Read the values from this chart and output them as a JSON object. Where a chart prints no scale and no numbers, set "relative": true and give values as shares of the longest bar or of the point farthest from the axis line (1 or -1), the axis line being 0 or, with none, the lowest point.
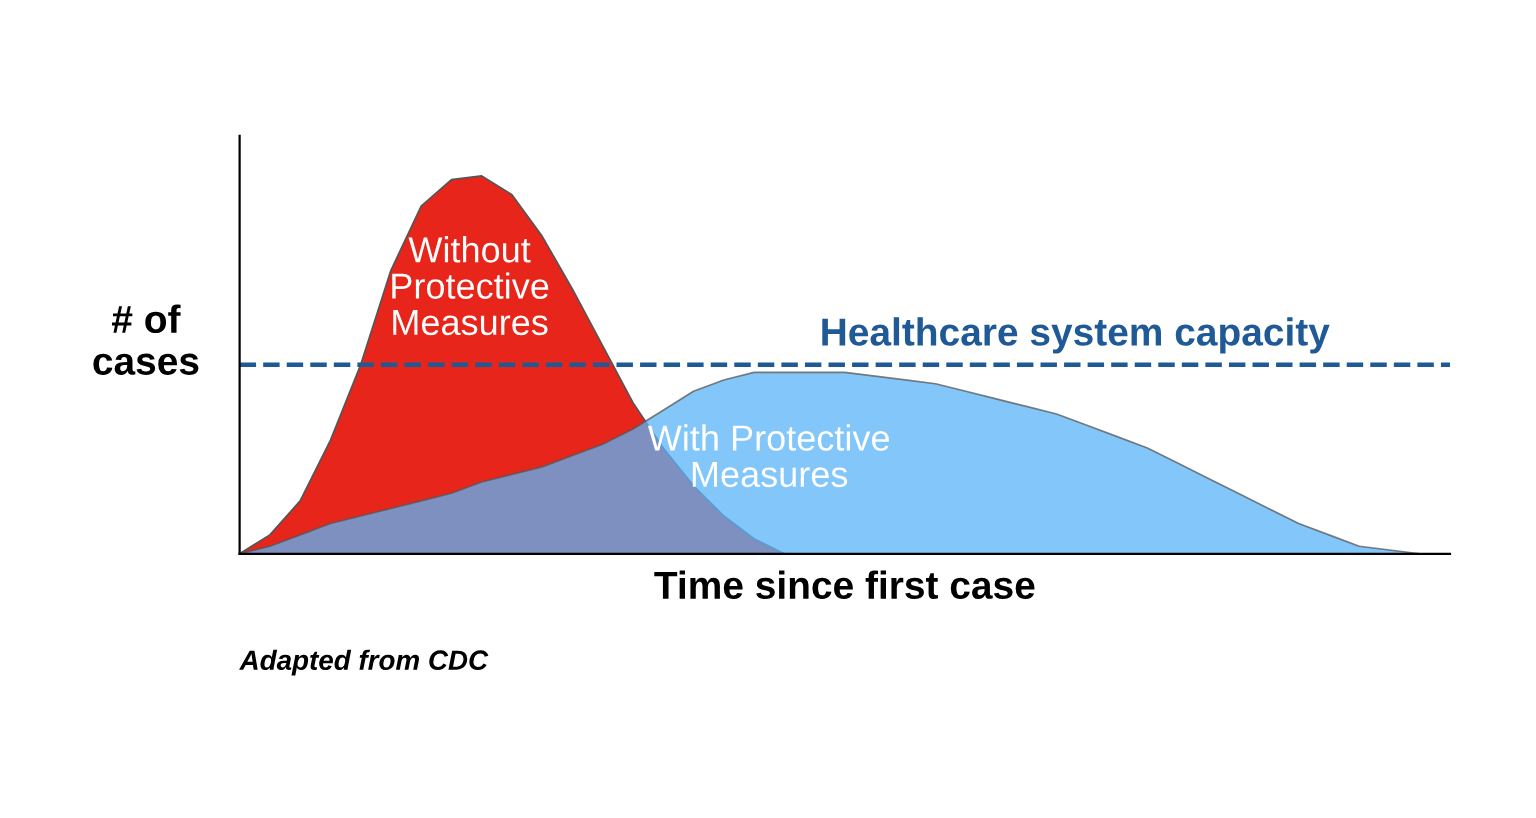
{
  "chart_data": {
    "type": "area",
    "relative": true,
    "xlabel": "Time since first case",
    "ylabel": "# of\ncases",
    "categories": [
      null,
      null,
      null,
      null,
      null,
      null,
      null,
      null,
      null,
      null,
      null,
      null,
      null,
      null,
      null,
      null,
      null,
      null,
      null,
      null,
      null,
      null,
      null,
      null,
      null,
      null,
      null,
      null,
      null,
      null,
      null,
      null,
      null,
      null,
      null,
      null,
      null,
      null,
      null,
      null,
      null
    ],
    "series": [
      {
        "name": "Without\nProtective\nMeasures",
        "color": "#e8251a",
        "values": [
          0,
          0.05,
          0.14,
          0.3,
          0.5,
          0.75,
          0.92,
          0.99,
          1,
          0.95,
          0.84,
          0.7,
          0.55,
          0.4,
          0.28,
          0.18,
          0.1,
          0.04,
          0,
          0,
          0,
          0,
          0,
          0,
          0,
          0,
          0,
          0,
          0,
          0,
          0,
          0,
          0,
          0,
          0,
          0,
          0,
          0,
          0,
          0,
          0
        ]
      },
      {
        "name": "With Protective\nMeasures",
        "color": "#5ab4f8",
        "values": [
          0,
          0.02,
          0.05,
          0.08,
          0.1,
          0.12,
          0.14,
          0.16,
          0.19,
          0.21,
          0.23,
          0.26,
          0.29,
          0.33,
          0.38,
          0.43,
          0.46,
          0.48,
          0.48,
          0.48,
          0.48,
          0.47,
          0.46,
          0.45,
          0.43,
          0.41,
          0.39,
          0.37,
          0.34,
          0.31,
          0.28,
          0.24,
          0.2,
          0.16,
          0.12,
          0.08,
          0.05,
          0.02,
          0.01,
          0,
          0
        ]
      }
    ],
    "ref_lines": [
      {
        "axis": "y",
        "value": 0.5,
        "label": "Healthcare system capacity",
        "color": "#1f5a96",
        "line_style": "dashed"
      }
    ],
    "annotations": [
      "Adapted from CDC"
    ]
  }
}
